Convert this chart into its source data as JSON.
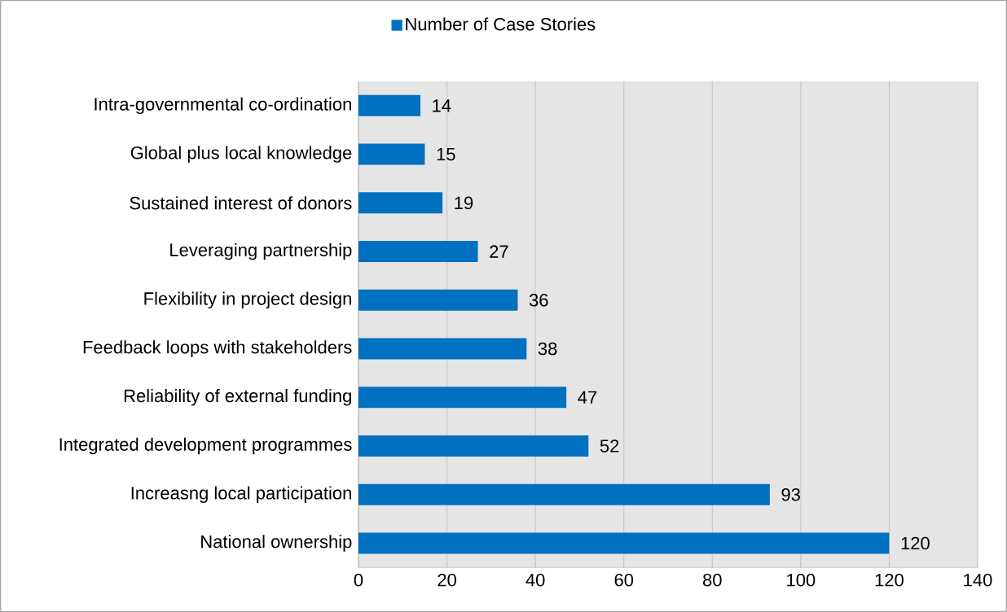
{
  "chart_data": {
    "type": "bar",
    "orientation": "horizontal",
    "categories": [
      "Intra-governmental co-ordination",
      "Global plus local knowledge",
      "Sustained interest of donors",
      "Leveraging partnership",
      "Flexibility in project design",
      "Feedback loops with stakeholders",
      "Reliability of external funding",
      "Integrated development programmes",
      "Increasng local participation",
      "National ownership"
    ],
    "series": [
      {
        "name": "Number of Case Stories",
        "color": "#0070c0",
        "values": [
          14,
          15,
          19,
          27,
          36,
          38,
          47,
          52,
          93,
          120
        ]
      }
    ],
    "xlim": [
      0,
      140
    ],
    "xticks": [
      0,
      20,
      40,
      60,
      80,
      100,
      120,
      140
    ],
    "grid": "x",
    "legend": "top",
    "data_labels": true
  }
}
